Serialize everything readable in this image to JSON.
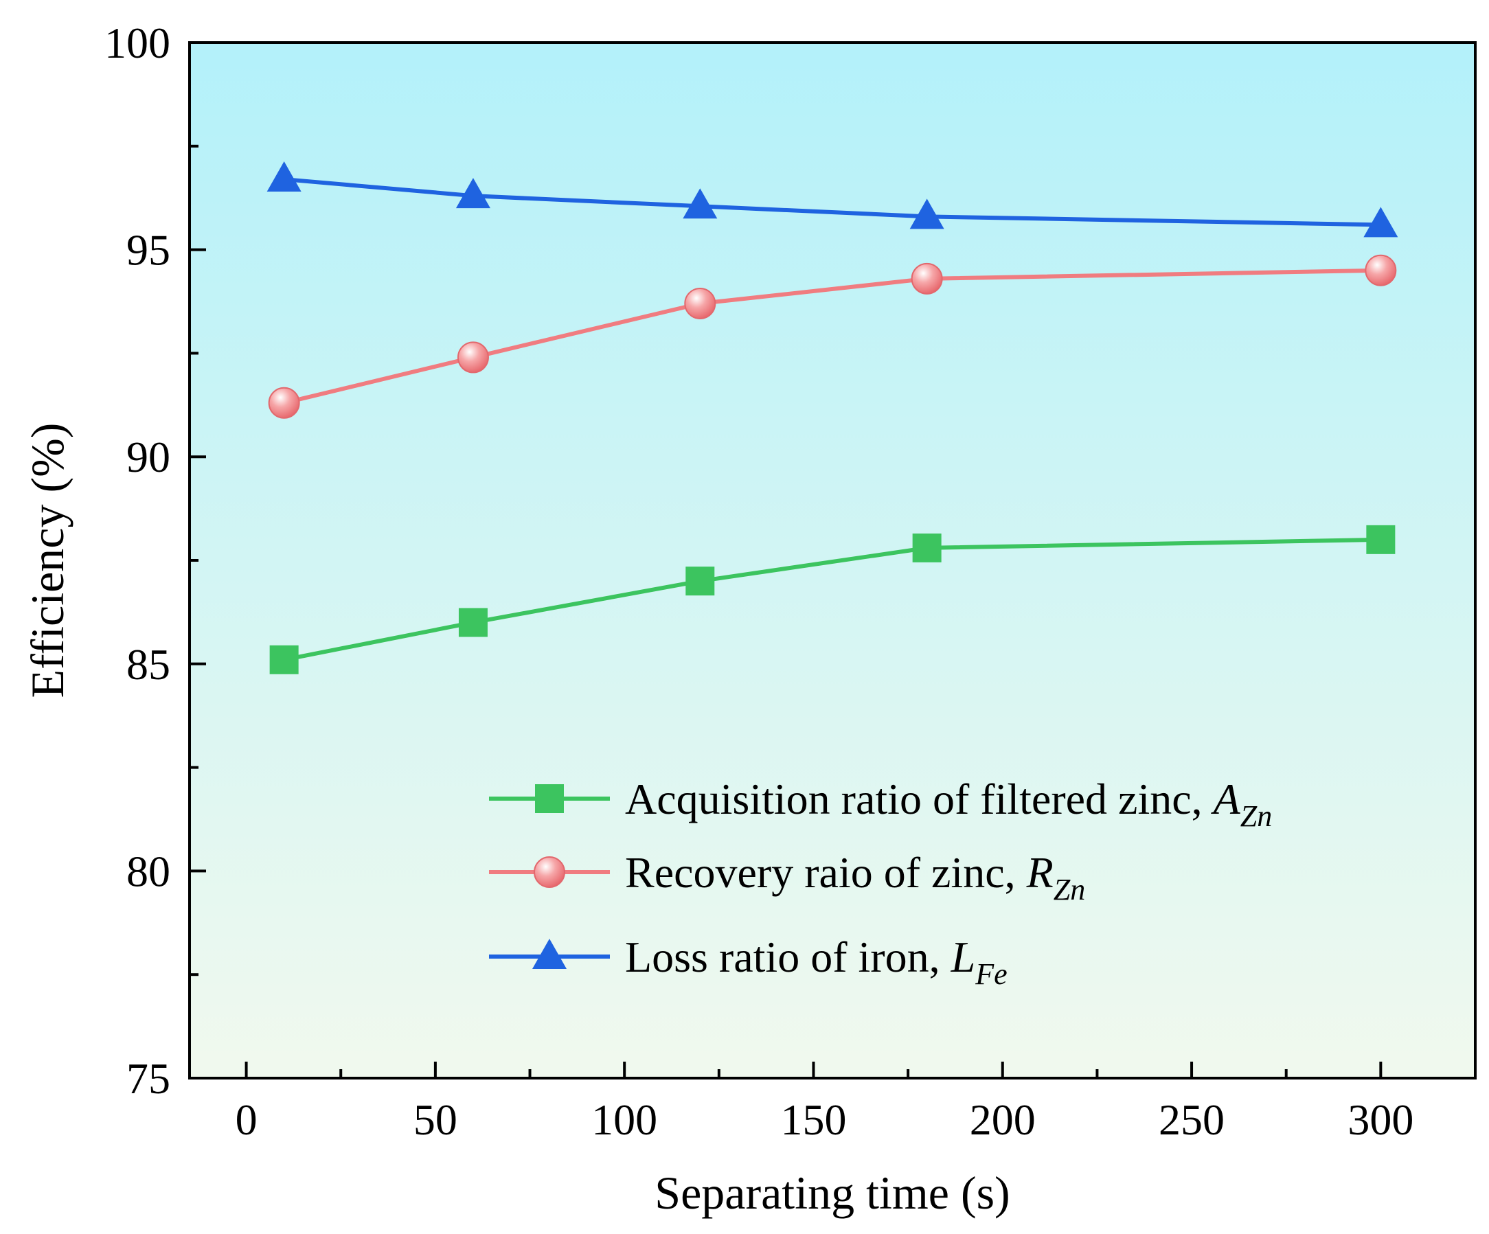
{
  "chart_data": {
    "type": "line",
    "title": "",
    "xlabel": "Separating time (s)",
    "ylabel": "Efficiency (%)",
    "xlim": [
      -15,
      325
    ],
    "ylim": [
      75,
      100
    ],
    "x_ticks": [
      0,
      50,
      100,
      150,
      200,
      250,
      300
    ],
    "x_tick_labels": [
      "0",
      "50",
      "100",
      "150",
      "200",
      "250",
      "300"
    ],
    "x_minor_ticks": [
      25,
      75,
      125,
      175,
      225,
      275
    ],
    "y_ticks": [
      75,
      80,
      85,
      90,
      95,
      100
    ],
    "y_tick_labels": [
      "75",
      "80",
      "85",
      "90",
      "95",
      "100"
    ],
    "y_minor_ticks": [
      77.5,
      82.5,
      87.5,
      92.5,
      97.5
    ],
    "grid": false,
    "legend_position": "bottom-right",
    "background_gradient": [
      "#b3f1fa",
      "#f1f9ee"
    ],
    "x": [
      10,
      60,
      120,
      180,
      300
    ],
    "series": [
      {
        "name": "Acquisition ratio of filtered zinc, ",
        "symbol": "A",
        "subscript": "Zn",
        "marker": "square",
        "color": "#3cc45f",
        "values": [
          85.1,
          86.0,
          87.0,
          87.8,
          88.0
        ]
      },
      {
        "name": "Recovery raio of zinc, ",
        "symbol": "R",
        "subscript": "Zn",
        "marker": "circle",
        "color": "#f07c80",
        "values": [
          91.3,
          92.4,
          93.7,
          94.3,
          94.5
        ]
      },
      {
        "name": "Loss ratio of iron, ",
        "symbol": "L",
        "subscript": "Fe",
        "marker": "triangle",
        "color": "#1f63e0",
        "values": [
          96.7,
          96.3,
          96.05,
          95.8,
          95.6
        ]
      }
    ]
  }
}
